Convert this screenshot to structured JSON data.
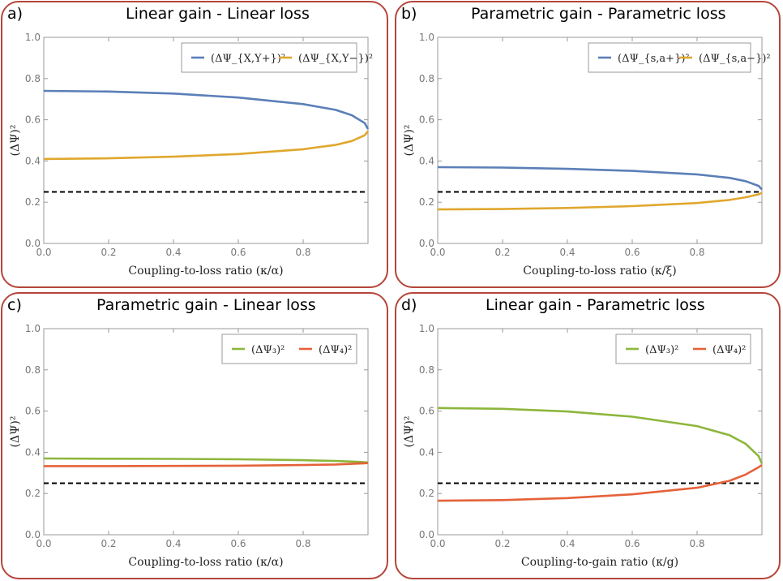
{
  "chart_data": [
    {
      "type": "line",
      "panel_label": "a)",
      "title": "Linear gain - Linear loss",
      "xlabel": "Coupling-to-loss ratio (κ/α)",
      "ylabel": "(ΔΨ)²",
      "xlim": [
        0,
        1
      ],
      "ylim": [
        0,
        1
      ],
      "xticks": [
        0.0,
        0.2,
        0.4,
        0.6,
        0.8
      ],
      "xtick_labels": [
        "0.0",
        "0.2",
        "0.4",
        "0.6",
        "0.8"
      ],
      "yticks": [
        0.0,
        0.2,
        0.4,
        0.6,
        0.8,
        1.0
      ],
      "ytick_labels": [
        "0.0",
        "0.2",
        "0.4",
        "0.6",
        "0.8",
        "1.0"
      ],
      "legend_position": "top-right",
      "series": [
        {
          "name": "(ΔΨ_{X,Y+})²",
          "color": "#5b7fb8",
          "x": [
            0,
            0.2,
            0.4,
            0.6,
            0.8,
            0.9,
            0.95,
            0.99,
            1.0
          ],
          "y": [
            0.74,
            0.737,
            0.727,
            0.708,
            0.676,
            0.648,
            0.622,
            0.584,
            0.555
          ]
        },
        {
          "name": "(ΔΨ_{X,Y−})²",
          "color": "#e0a72e",
          "x": [
            0,
            0.2,
            0.4,
            0.6,
            0.8,
            0.9,
            0.95,
            0.99,
            1.0
          ],
          "y": [
            0.41,
            0.413,
            0.421,
            0.434,
            0.457,
            0.478,
            0.497,
            0.525,
            0.545
          ]
        }
      ],
      "reference_line": {
        "y": 0.25,
        "style": "dashed",
        "color": "#000000"
      }
    },
    {
      "type": "line",
      "panel_label": "b)",
      "title": "Parametric gain - Parametric loss",
      "xlabel": "Coupling-to-loss ratio (κ/ξ)",
      "ylabel": "(ΔΨ)²",
      "xlim": [
        0,
        1
      ],
      "ylim": [
        0,
        1
      ],
      "xticks": [
        0.0,
        0.2,
        0.4,
        0.6,
        0.8
      ],
      "xtick_labels": [
        "0.0",
        "0.2",
        "0.4",
        "0.6",
        "0.8"
      ],
      "yticks": [
        0.0,
        0.2,
        0.4,
        0.6,
        0.8,
        1.0
      ],
      "ytick_labels": [
        "0.0",
        "0.2",
        "0.4",
        "0.6",
        "0.8",
        "1.0"
      ],
      "legend_position": "top-right",
      "series": [
        {
          "name": "(ΔΨ_{s,a+})²",
          "color": "#5b7fb8",
          "x": [
            0,
            0.2,
            0.4,
            0.6,
            0.8,
            0.9,
            0.95,
            0.99,
            1.0
          ],
          "y": [
            0.37,
            0.368,
            0.362,
            0.352,
            0.335,
            0.318,
            0.302,
            0.279,
            0.262
          ]
        },
        {
          "name": "(ΔΨ_{s,a−})²",
          "color": "#e0a72e",
          "x": [
            0,
            0.2,
            0.4,
            0.6,
            0.8,
            0.9,
            0.95,
            0.99,
            1.0
          ],
          "y": [
            0.165,
            0.167,
            0.172,
            0.181,
            0.196,
            0.211,
            0.224,
            0.238,
            0.246
          ]
        }
      ],
      "reference_line": {
        "y": 0.25,
        "style": "dashed",
        "color": "#000000"
      }
    },
    {
      "type": "line",
      "panel_label": "c)",
      "title": "Parametric gain - Linear loss",
      "xlabel": "Coupling-to-loss ratio (κ/α)",
      "ylabel": "(ΔΨ)²",
      "xlim": [
        0,
        1
      ],
      "ylim": [
        0,
        1
      ],
      "xticks": [
        0.0,
        0.2,
        0.4,
        0.6,
        0.8
      ],
      "xtick_labels": [
        "0.0",
        "0.2",
        "0.4",
        "0.6",
        "0.8"
      ],
      "yticks": [
        0.0,
        0.2,
        0.4,
        0.6,
        0.8,
        1.0
      ],
      "ytick_labels": [
        "0.0",
        "0.2",
        "0.4",
        "0.6",
        "0.8",
        "1.0"
      ],
      "legend_position": "top-right",
      "series": [
        {
          "name": "(ΔΨ₃)²",
          "color": "#8db63c",
          "x": [
            0,
            0.2,
            0.4,
            0.6,
            0.8,
            0.9,
            0.95,
            0.99,
            1.0
          ],
          "y": [
            0.37,
            0.369,
            0.368,
            0.366,
            0.362,
            0.358,
            0.355,
            0.352,
            0.35
          ]
        },
        {
          "name": "(ΔΨ₄)²",
          "color": "#e5623a",
          "x": [
            0,
            0.2,
            0.4,
            0.6,
            0.8,
            0.9,
            0.95,
            0.99,
            1.0
          ],
          "y": [
            0.333,
            0.333,
            0.334,
            0.335,
            0.338,
            0.341,
            0.344,
            0.347,
            0.349
          ]
        }
      ],
      "reference_line": {
        "y": 0.25,
        "style": "dashed",
        "color": "#000000"
      }
    },
    {
      "type": "line",
      "panel_label": "d)",
      "title": "Linear gain - Parametric loss",
      "xlabel": "Coupling-to-gain ratio (κ/g)",
      "ylabel": "(ΔΨ)²",
      "xlim": [
        0,
        1
      ],
      "ylim": [
        0,
        1
      ],
      "xticks": [
        0.0,
        0.2,
        0.4,
        0.6,
        0.8
      ],
      "xtick_labels": [
        "0.0",
        "0.2",
        "0.4",
        "0.6",
        "0.8"
      ],
      "yticks": [
        0.0,
        0.2,
        0.4,
        0.6,
        0.8,
        1.0
      ],
      "ytick_labels": [
        "0.0",
        "0.2",
        "0.4",
        "0.6",
        "0.8",
        "1.0"
      ],
      "legend_position": "top-right",
      "series": [
        {
          "name": "(ΔΨ₃)²",
          "color": "#8db63c",
          "x": [
            0,
            0.2,
            0.4,
            0.6,
            0.8,
            0.9,
            0.95,
            0.99,
            1.0
          ],
          "y": [
            0.615,
            0.611,
            0.598,
            0.573,
            0.527,
            0.483,
            0.441,
            0.381,
            0.345
          ]
        },
        {
          "name": "(ΔΨ₄)²",
          "color": "#e5623a",
          "x": [
            0,
            0.2,
            0.4,
            0.6,
            0.8,
            0.9,
            0.95,
            0.99,
            1.0
          ],
          "y": [
            0.165,
            0.168,
            0.178,
            0.196,
            0.228,
            0.262,
            0.292,
            0.328,
            0.338
          ]
        }
      ],
      "reference_line": {
        "y": 0.25,
        "style": "dashed",
        "color": "#000000"
      }
    }
  ]
}
